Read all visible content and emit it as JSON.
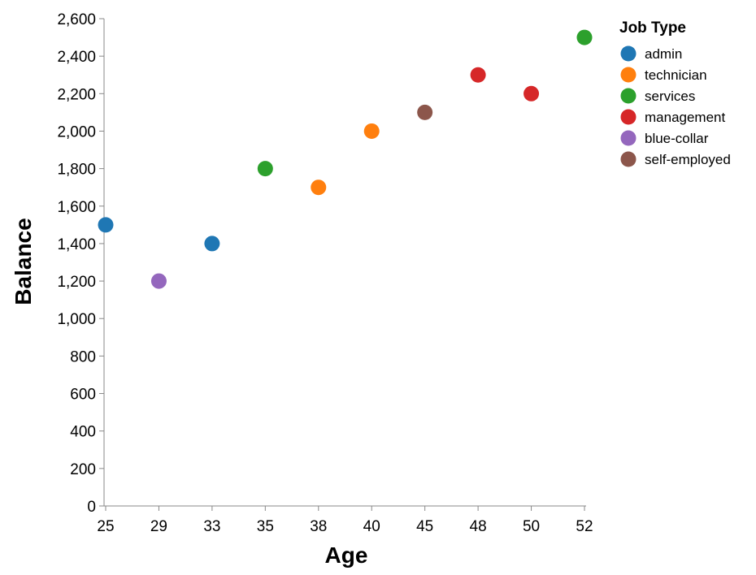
{
  "chart_data": {
    "type": "scatter",
    "xlabel": "Age",
    "ylabel": "Balance",
    "x_categories": [
      "25",
      "29",
      "33",
      "35",
      "38",
      "40",
      "45",
      "48",
      "50",
      "52"
    ],
    "ylim": [
      0,
      2600
    ],
    "yticks": [
      0,
      200,
      400,
      600,
      800,
      1000,
      1200,
      1400,
      1600,
      1800,
      2000,
      2200,
      2400,
      2600
    ],
    "ytick_labels": [
      "0",
      "200",
      "400",
      "600",
      "800",
      "1,000",
      "1,200",
      "1,400",
      "1,600",
      "1,800",
      "2,000",
      "2,200",
      "2,400",
      "2,600"
    ],
    "grid": false,
    "legend": {
      "title": "Job Type",
      "position": "top-right",
      "entries": [
        {
          "name": "admin",
          "color": "#1f77b4"
        },
        {
          "name": "technician",
          "color": "#ff7f0e"
        },
        {
          "name": "services",
          "color": "#2ca02c"
        },
        {
          "name": "management",
          "color": "#d62728"
        },
        {
          "name": "blue-collar",
          "color": "#9467bd"
        },
        {
          "name": "self-employed",
          "color": "#8c564b"
        }
      ]
    },
    "points": [
      {
        "x": "25",
        "y": 1500,
        "job": "admin"
      },
      {
        "x": "29",
        "y": 1200,
        "job": "blue-collar"
      },
      {
        "x": "33",
        "y": 1400,
        "job": "admin"
      },
      {
        "x": "35",
        "y": 1800,
        "job": "services"
      },
      {
        "x": "38",
        "y": 1700,
        "job": "technician"
      },
      {
        "x": "40",
        "y": 2000,
        "job": "technician"
      },
      {
        "x": "45",
        "y": 2100,
        "job": "self-employed"
      },
      {
        "x": "48",
        "y": 2300,
        "job": "management"
      },
      {
        "x": "50",
        "y": 2200,
        "job": "management"
      },
      {
        "x": "52",
        "y": 2500,
        "job": "services"
      }
    ]
  }
}
